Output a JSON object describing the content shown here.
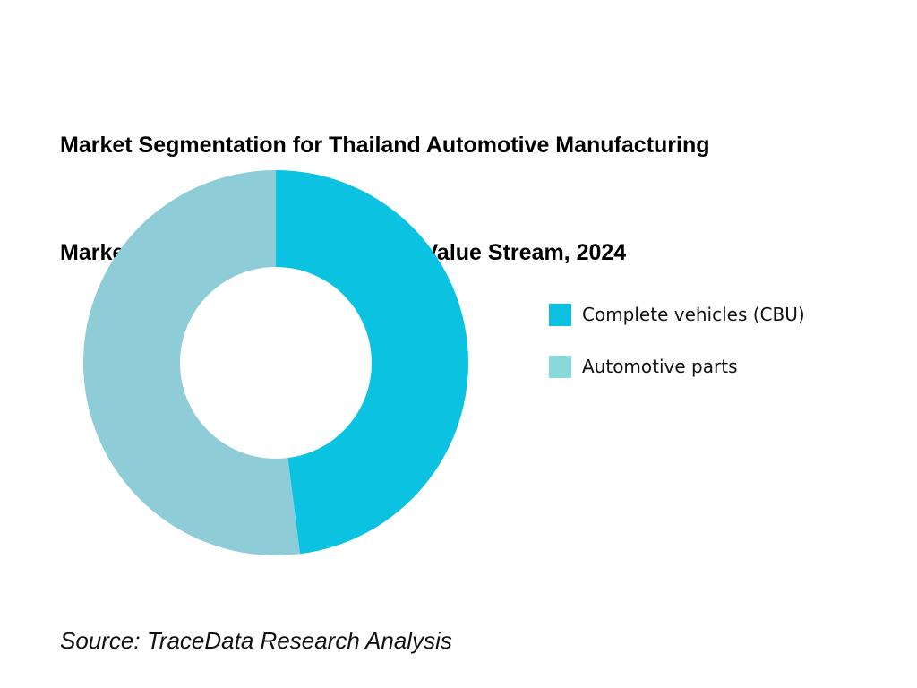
{
  "chart_data": {
    "type": "pie",
    "donut": true,
    "title_lines": [
      "Market Segmentation for Thailand Automotive Manufacturing",
      "Market on the Basis of  By Export Value Stream, 2024"
    ],
    "categories": [
      "Complete vehicles (CBU)",
      "Automotive parts"
    ],
    "values": [
      48,
      52
    ],
    "colors": [
      "#0BC2E1",
      "#8ECCD8"
    ],
    "legend_colors": [
      "#0BC0E0",
      "#88D9D9"
    ],
    "legend_placement": "right",
    "start_angle": "12 o'clock, clockwise"
  },
  "source": "Source: TraceData Research Analysis"
}
